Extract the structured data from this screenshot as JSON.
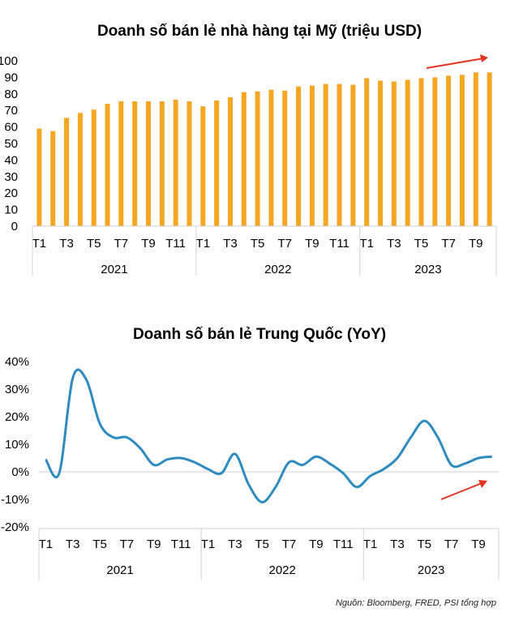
{
  "chart_data": [
    {
      "type": "bar",
      "title": "Doanh số bán lẻ nhà hàng tại Mỹ (triệu USD)",
      "color": "#F5A623",
      "ylim": [
        0,
        100
      ],
      "yticks": [
        "0",
        "10",
        "20",
        "30",
        "40",
        "50",
        "60",
        "70",
        "80",
        "90",
        "100"
      ],
      "month_labels": [
        "T1",
        "T3",
        "T5",
        "T7",
        "T9",
        "T11",
        "T1",
        "T3",
        "T5",
        "T7",
        "T9",
        "T11",
        "T1",
        "T3",
        "T5",
        "T7",
        "T9"
      ],
      "years": [
        "2021",
        "2022",
        "2023"
      ],
      "values": [
        59,
        57.5,
        65.5,
        68.5,
        70.5,
        74,
        75.5,
        75.5,
        75.5,
        75.5,
        76.5,
        75.5,
        72.5,
        76,
        78,
        81,
        81.5,
        82.5,
        82,
        84.5,
        85,
        86,
        86,
        85.5,
        89.5,
        88,
        87.5,
        88.5,
        89.5,
        90,
        91,
        91.5,
        93,
        93
      ]
    },
    {
      "type": "line",
      "title": "Doanh số bán lẻ Trung Quốc (YoY)",
      "color": "#2E8BC0",
      "ylim": [
        -20,
        40
      ],
      "yticks": [
        "40%",
        "30%",
        "20%",
        "10%",
        "0%",
        "-10%",
        "-20%"
      ],
      "month_labels": [
        "T1",
        "T3",
        "T5",
        "T7",
        "T9",
        "T11",
        "T1",
        "T3",
        "T5",
        "T7",
        "T9",
        "T11",
        "T1",
        "T3",
        "T5",
        "T7",
        "T9"
      ],
      "years": [
        "2021",
        "2022",
        "2023"
      ],
      "values": [
        4.5,
        -0.5,
        34,
        33.5,
        17.5,
        12.5,
        12.5,
        8.5,
        2.5,
        4.5,
        5,
        3.5,
        1,
        -0.5,
        6.5,
        -4.5,
        -11,
        -5.5,
        3.5,
        2.5,
        5.5,
        3,
        -0.5,
        -5.5,
        -1.5,
        1,
        5,
        12.5,
        18.5,
        12.5,
        2.5,
        3,
        5,
        5.5
      ]
    }
  ],
  "source": "Nguồn: Bloomberg, FRED, PSI tổng hợp"
}
